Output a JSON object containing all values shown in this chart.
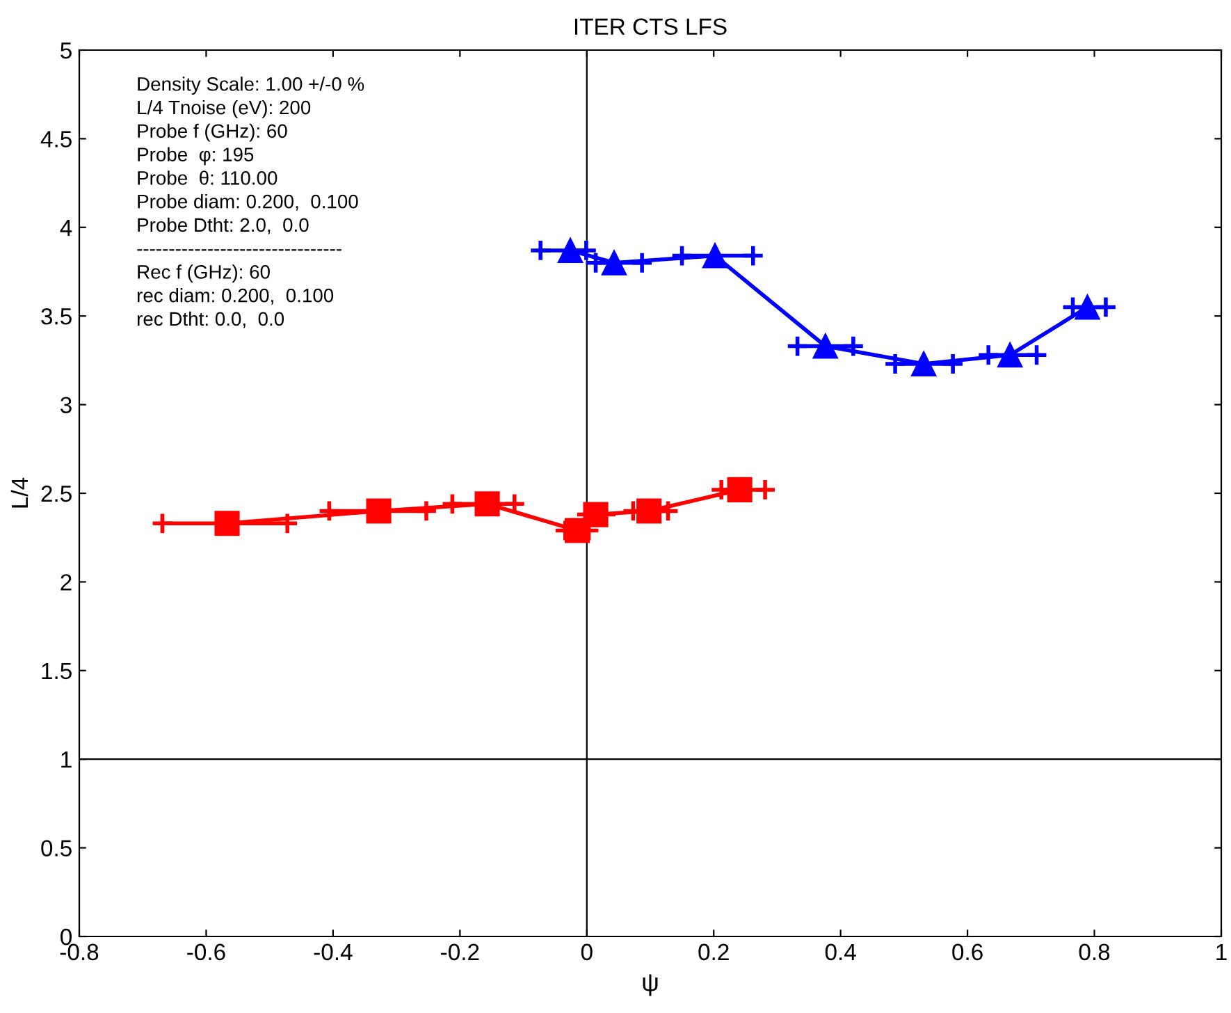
{
  "chart_data": {
    "type": "line",
    "title": "ITER CTS LFS",
    "xlabel": "ψ",
    "ylabel": "L/4",
    "xlim": [
      -0.8,
      1
    ],
    "ylim": [
      0,
      5
    ],
    "xticks": [
      -0.8,
      -0.6,
      -0.4,
      -0.2,
      0,
      0.2,
      0.4,
      0.6,
      0.8,
      1
    ],
    "yticks": [
      0,
      0.5,
      1,
      1.5,
      2,
      2.5,
      3,
      3.5,
      4,
      4.5,
      5
    ],
    "grid": false,
    "line_style": "solid",
    "series": [
      {
        "color": "#0000ff",
        "marker": "triangle",
        "x": [
          -0.026,
          0.043,
          0.202,
          0.376,
          0.531,
          0.667,
          0.789
        ],
        "values": [
          3.87,
          3.8,
          3.84,
          3.33,
          3.23,
          3.28,
          3.55
        ],
        "xerrors": [
          [
            -0.073,
            -0.001
          ],
          [
            0.014,
            0.087
          ],
          [
            0.15,
            0.262
          ],
          [
            0.332,
            0.42
          ],
          [
            0.486,
            0.577
          ],
          [
            0.633,
            0.709
          ],
          [
            0.766,
            0.818
          ]
        ]
      },
      {
        "color": "#ff0000",
        "marker": "square",
        "x": [
          -0.567,
          -0.328,
          -0.157,
          -0.015,
          0.014,
          0.098,
          0.241
        ],
        "values": [
          2.33,
          2.4,
          2.44,
          2.29,
          2.38,
          2.4,
          2.52
        ],
        "xerrors": [
          [
            -0.669,
            -0.472
          ],
          [
            -0.406,
            -0.253
          ],
          [
            -0.212,
            -0.114
          ],
          [
            -0.034,
            0.003
          ],
          [
            0.0,
            0.03
          ],
          [
            0.073,
            0.128
          ],
          [
            0.212,
            0.281
          ]
        ]
      }
    ],
    "ref_lines": [
      {
        "axis": "x",
        "value": 0,
        "color": "#000000"
      },
      {
        "axis": "y",
        "value": 1,
        "color": "#000000"
      }
    ],
    "annotations": [
      "Density Scale: 1.00 +/-0 %",
      "L/4 Tnoise (eV): 200",
      "Probe f (GHz): 60",
      "Probe  φ: 195",
      "Probe  θ: 110.00",
      "Probe diam: 0.200,  0.100",
      "Probe Dtht: 2.0,  0.0",
      "--------------------------------",
      "Rec f (GHz): 60",
      "rec diam: 0.200,  0.100",
      "rec Dtht: 0.0,  0.0"
    ]
  }
}
